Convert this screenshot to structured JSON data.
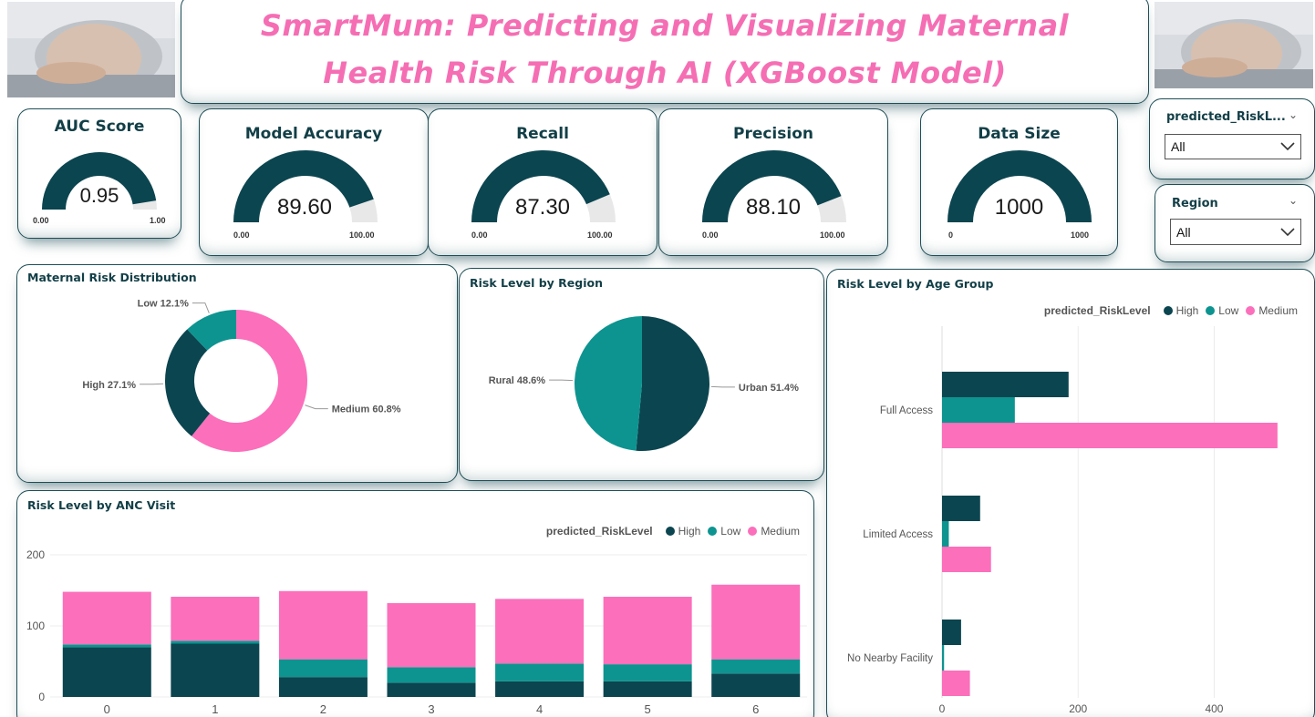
{
  "title": "SmartMum: Predicting and Visualizing Maternal Health Risk Through AI (XGBoost Model)",
  "colors": {
    "high": "#0b4550",
    "low": "#0d9490",
    "medium": "#fb6fbb",
    "gauge_fill": "#0b4550",
    "gauge_track": "#e8e8e8"
  },
  "kpis": [
    {
      "title": "AUC Score",
      "value": "0.95",
      "fraction": 0.95,
      "min": "0.00",
      "max": "1.00"
    },
    {
      "title": "Model Accuracy",
      "value": "89.60",
      "fraction": 0.896,
      "min": "0.00",
      "max": "100.00"
    },
    {
      "title": "Recall",
      "value": "87.30",
      "fraction": 0.873,
      "min": "0.00",
      "max": "100.00"
    },
    {
      "title": "Precision",
      "value": "88.10",
      "fraction": 0.881,
      "min": "0.00",
      "max": "100.00"
    },
    {
      "title": "Data Size",
      "value": "1000",
      "fraction": 1.0,
      "min": "0",
      "max": "1000"
    }
  ],
  "slicers": [
    {
      "label": "predicted_RiskL...",
      "value": "All"
    },
    {
      "label": "Region",
      "value": "All"
    }
  ],
  "chart_data": [
    {
      "type": "pie",
      "variant": "donut",
      "title": "Maternal Risk Distribution",
      "slices": [
        {
          "label": "Medium",
          "value": 60.8,
          "text": "Medium 60.8%"
        },
        {
          "label": "High",
          "value": 27.1,
          "text": "High 27.1%"
        },
        {
          "label": "Low",
          "value": 12.1,
          "text": "Low 12.1%"
        }
      ]
    },
    {
      "type": "pie",
      "title": "Risk Level by Region",
      "slices": [
        {
          "label": "Urban",
          "value": 51.4,
          "text": "Urban 51.4%"
        },
        {
          "label": "Rural",
          "value": 48.6,
          "text": "Rural 48.6%"
        }
      ]
    },
    {
      "type": "bar",
      "orientation": "horizontal",
      "title": "Risk Level by Age Group",
      "legend_title": "predicted_RiskLevel",
      "categories": [
        "Full Access",
        "Limited Access",
        "No Nearby Facility"
      ],
      "series": [
        {
          "name": "High",
          "values": [
            186,
            56,
            28
          ]
        },
        {
          "name": "Low",
          "values": [
            107,
            10,
            3
          ]
        },
        {
          "name": "Medium",
          "values": [
            493,
            72,
            41
          ]
        }
      ],
      "xlim": [
        0,
        520
      ],
      "xticks": [
        "0",
        "200",
        "400"
      ],
      "xtick_values": [
        0,
        200,
        400
      ]
    },
    {
      "type": "bar",
      "stacked": true,
      "title": "Risk Level by ANC Visit",
      "legend_title": "predicted_RiskLevel",
      "categories": [
        "0",
        "1",
        "2",
        "3",
        "4",
        "5",
        "6"
      ],
      "series": [
        {
          "name": "High",
          "values": [
            70,
            75,
            28,
            20,
            22,
            22,
            33
          ]
        },
        {
          "name": "Low",
          "values": [
            4,
            4,
            25,
            22,
            25,
            24,
            20
          ]
        },
        {
          "name": "Medium",
          "values": [
            74,
            62,
            96,
            90,
            91,
            95,
            105
          ]
        }
      ],
      "ylim": [
        0,
        200
      ],
      "yticks": [
        "0",
        "100",
        "200"
      ],
      "ytick_values": [
        0,
        100,
        200
      ]
    }
  ]
}
